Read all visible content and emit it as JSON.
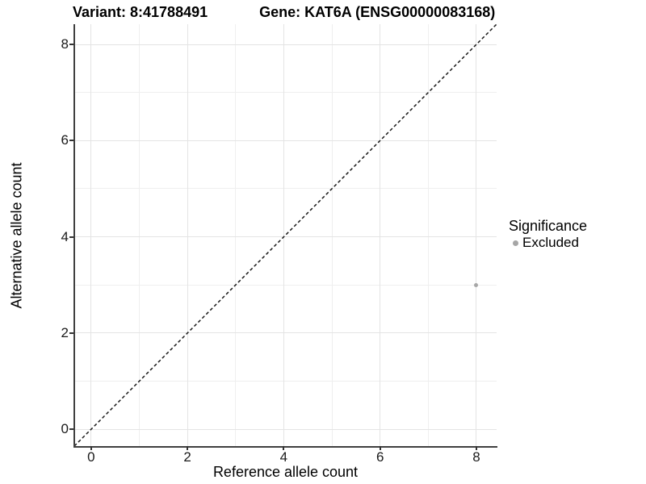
{
  "titles": {
    "variant": "Variant: 8:41788491",
    "gene": "Gene: KAT6A (ENSG00000083168)"
  },
  "chart_data": {
    "type": "scatter",
    "title_left": "Variant: 8:41788491",
    "title_right": "Gene: KAT6A (ENSG00000083168)",
    "xlabel": "Reference allele count",
    "ylabel": "Alternative allele count",
    "xlim": [
      -0.35,
      8.42
    ],
    "ylim": [
      -0.35,
      8.42
    ],
    "x_ticks": [
      0,
      2,
      4,
      6,
      8
    ],
    "y_ticks": [
      0,
      2,
      4,
      6,
      8
    ],
    "x_minor": [
      1,
      3,
      5,
      7
    ],
    "y_minor": [
      1,
      3,
      5,
      7
    ],
    "grid": true,
    "identity_line": {
      "style": "dashed",
      "slope": 1,
      "intercept": 0
    },
    "points": [
      {
        "x": 8,
        "y": 3,
        "series": "Excluded"
      }
    ],
    "legend": {
      "title": "Significance",
      "position": "right",
      "entries": [
        {
          "label": "Excluded",
          "color": "#a6a6a6"
        }
      ]
    },
    "colors": {
      "major_grid": "#e4e4e4",
      "minor_grid": "#efefef",
      "axis_line": "#404040",
      "identity_line": "#1a1a1a"
    }
  }
}
